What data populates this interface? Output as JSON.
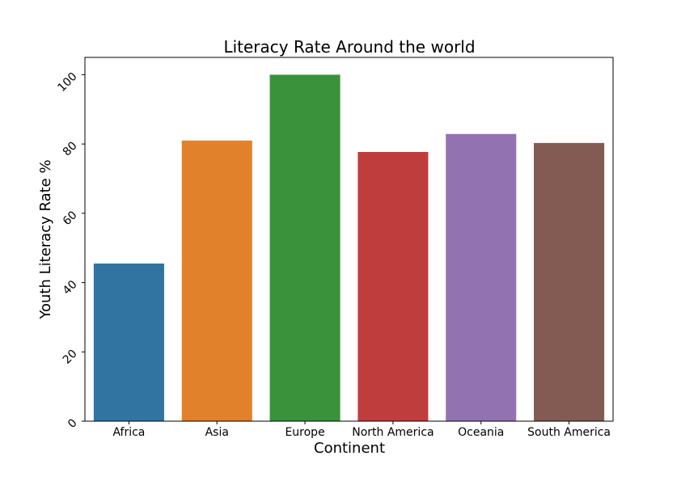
{
  "chart_data": {
    "type": "bar",
    "title": "Literacy Rate Around the world",
    "xlabel": "Continent",
    "ylabel": "Youth Literacy Rate %",
    "categories": [
      "Africa",
      "Asia",
      "Europe",
      "North America",
      "Oceania",
      "South America"
    ],
    "values": [
      45.5,
      81.0,
      100.0,
      77.7,
      82.9,
      80.3
    ],
    "colors": [
      "#3274a1",
      "#e1812c",
      "#3a923a",
      "#c03d3e",
      "#9372b2",
      "#845b53"
    ],
    "ylim": [
      0,
      105
    ],
    "yticks": [
      0,
      20,
      40,
      60,
      80,
      100
    ],
    "grid": false,
    "legend": false
  }
}
